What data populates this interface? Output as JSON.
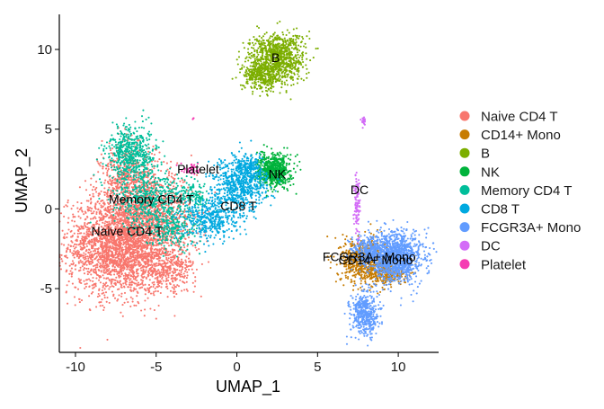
{
  "chart_data": {
    "type": "scatter",
    "title": "",
    "xlabel": "UMAP_1",
    "ylabel": "UMAP_2",
    "xlim": [
      -11,
      12.5
    ],
    "ylim": [
      -9,
      12.2
    ],
    "x_ticks": [
      -10,
      -5,
      0,
      5,
      10
    ],
    "y_ticks": [
      -5,
      0,
      5,
      10
    ],
    "grid": false,
    "legend_position": "right",
    "series": [
      {
        "name": "Naive CD4 T",
        "color": "#F8766D",
        "clusters": [
          {
            "cx": -7.2,
            "cy": -2.3,
            "sx": 1.9,
            "sy": 1.8,
            "n": 2600
          },
          {
            "cx": -5.3,
            "cy": -0.5,
            "sx": 1.6,
            "sy": 1.6,
            "n": 900
          },
          {
            "cx": -6.8,
            "cy": 1.8,
            "sx": 1.0,
            "sy": 1.4,
            "n": 500
          },
          {
            "cx": -4.2,
            "cy": -3.8,
            "sx": 1.0,
            "sy": 0.8,
            "n": 300
          }
        ]
      },
      {
        "name": "CD14+ Mono",
        "color": "#C77C02",
        "clusters": [
          {
            "cx": 7.8,
            "cy": -3.2,
            "sx": 0.8,
            "sy": 0.8,
            "n": 600
          },
          {
            "cx": 9.2,
            "cy": -4.1,
            "sx": 0.8,
            "sy": 0.4,
            "n": 300
          }
        ]
      },
      {
        "name": "B",
        "color": "#7CAE00",
        "clusters": [
          {
            "cx": 2.5,
            "cy": 9.5,
            "sx": 1.0,
            "sy": 0.9,
            "n": 900
          },
          {
            "cx": 1.5,
            "cy": 8.3,
            "sx": 0.7,
            "sy": 0.5,
            "n": 300
          }
        ]
      },
      {
        "name": "NK",
        "color": "#00B33C",
        "clusters": [
          {
            "cx": 2.3,
            "cy": 2.4,
            "sx": 0.6,
            "sy": 0.6,
            "n": 650
          }
        ]
      },
      {
        "name": "Memory CD4 T",
        "color": "#00BE9A",
        "clusters": [
          {
            "cx": -6.5,
            "cy": 3.5,
            "sx": 0.9,
            "sy": 1.0,
            "n": 550
          },
          {
            "cx": -5.5,
            "cy": 0.6,
            "sx": 1.3,
            "sy": 1.1,
            "n": 500
          },
          {
            "cx": -4.0,
            "cy": -1.3,
            "sx": 1.0,
            "sy": 0.8,
            "n": 250
          },
          {
            "cx": -2.6,
            "cy": 0.8,
            "sx": 0.6,
            "sy": 0.5,
            "n": 120
          }
        ]
      },
      {
        "name": "CD8 T",
        "color": "#00A9E0",
        "clusters": [
          {
            "cx": 0.2,
            "cy": 1.5,
            "sx": 1.0,
            "sy": 1.0,
            "n": 700
          },
          {
            "cx": -1.6,
            "cy": -0.6,
            "sx": 1.0,
            "sy": 0.8,
            "n": 400
          },
          {
            "cx": 0.8,
            "cy": 2.6,
            "sx": 0.5,
            "sy": 0.4,
            "n": 150
          }
        ]
      },
      {
        "name": "FCGR3A+ Mono",
        "color": "#619CFF",
        "clusters": [
          {
            "cx": 9.8,
            "cy": -3.0,
            "sx": 1.0,
            "sy": 0.9,
            "n": 1200
          },
          {
            "cx": 7.9,
            "cy": -6.6,
            "sx": 0.5,
            "sy": 0.8,
            "n": 450
          },
          {
            "cx": 8.2,
            "cy": -2.5,
            "sx": 0.6,
            "sy": 0.5,
            "n": 250
          }
        ]
      },
      {
        "name": "DC",
        "color": "#D36CF7",
        "clusters": [
          {
            "cx": 7.45,
            "cy": 0.3,
            "sx": 0.1,
            "sy": 1.2,
            "n": 110
          },
          {
            "cx": 7.9,
            "cy": 5.5,
            "sx": 0.1,
            "sy": 0.2,
            "n": 20
          }
        ]
      },
      {
        "name": "Platelet",
        "color": "#F53DB3",
        "clusters": [
          {
            "cx": -2.8,
            "cy": 2.5,
            "sx": 0.3,
            "sy": 0.2,
            "n": 40
          },
          {
            "cx": -2.7,
            "cy": 5.7,
            "sx": 0.05,
            "sy": 0.05,
            "n": 3
          }
        ]
      }
    ],
    "annotations": [
      {
        "text": "B",
        "x": 2.4,
        "y": 9.5
      },
      {
        "text": "Platelet",
        "x": -2.4,
        "y": 2.5
      },
      {
        "text": "NK",
        "x": 2.5,
        "y": 2.2
      },
      {
        "text": "DC",
        "x": 7.6,
        "y": 1.2
      },
      {
        "text": "Memory CD4 T",
        "x": -5.3,
        "y": 0.6
      },
      {
        "text": "CD8 T",
        "x": 0.1,
        "y": 0.2
      },
      {
        "text": "Naive CD4 T",
        "x": -6.8,
        "y": -1.4
      },
      {
        "text": "FCGR3A+ Mono",
        "x": 8.2,
        "y": -3.0
      },
      {
        "text": "CD14+ Mono",
        "x": 8.6,
        "y": -3.2
      }
    ]
  }
}
